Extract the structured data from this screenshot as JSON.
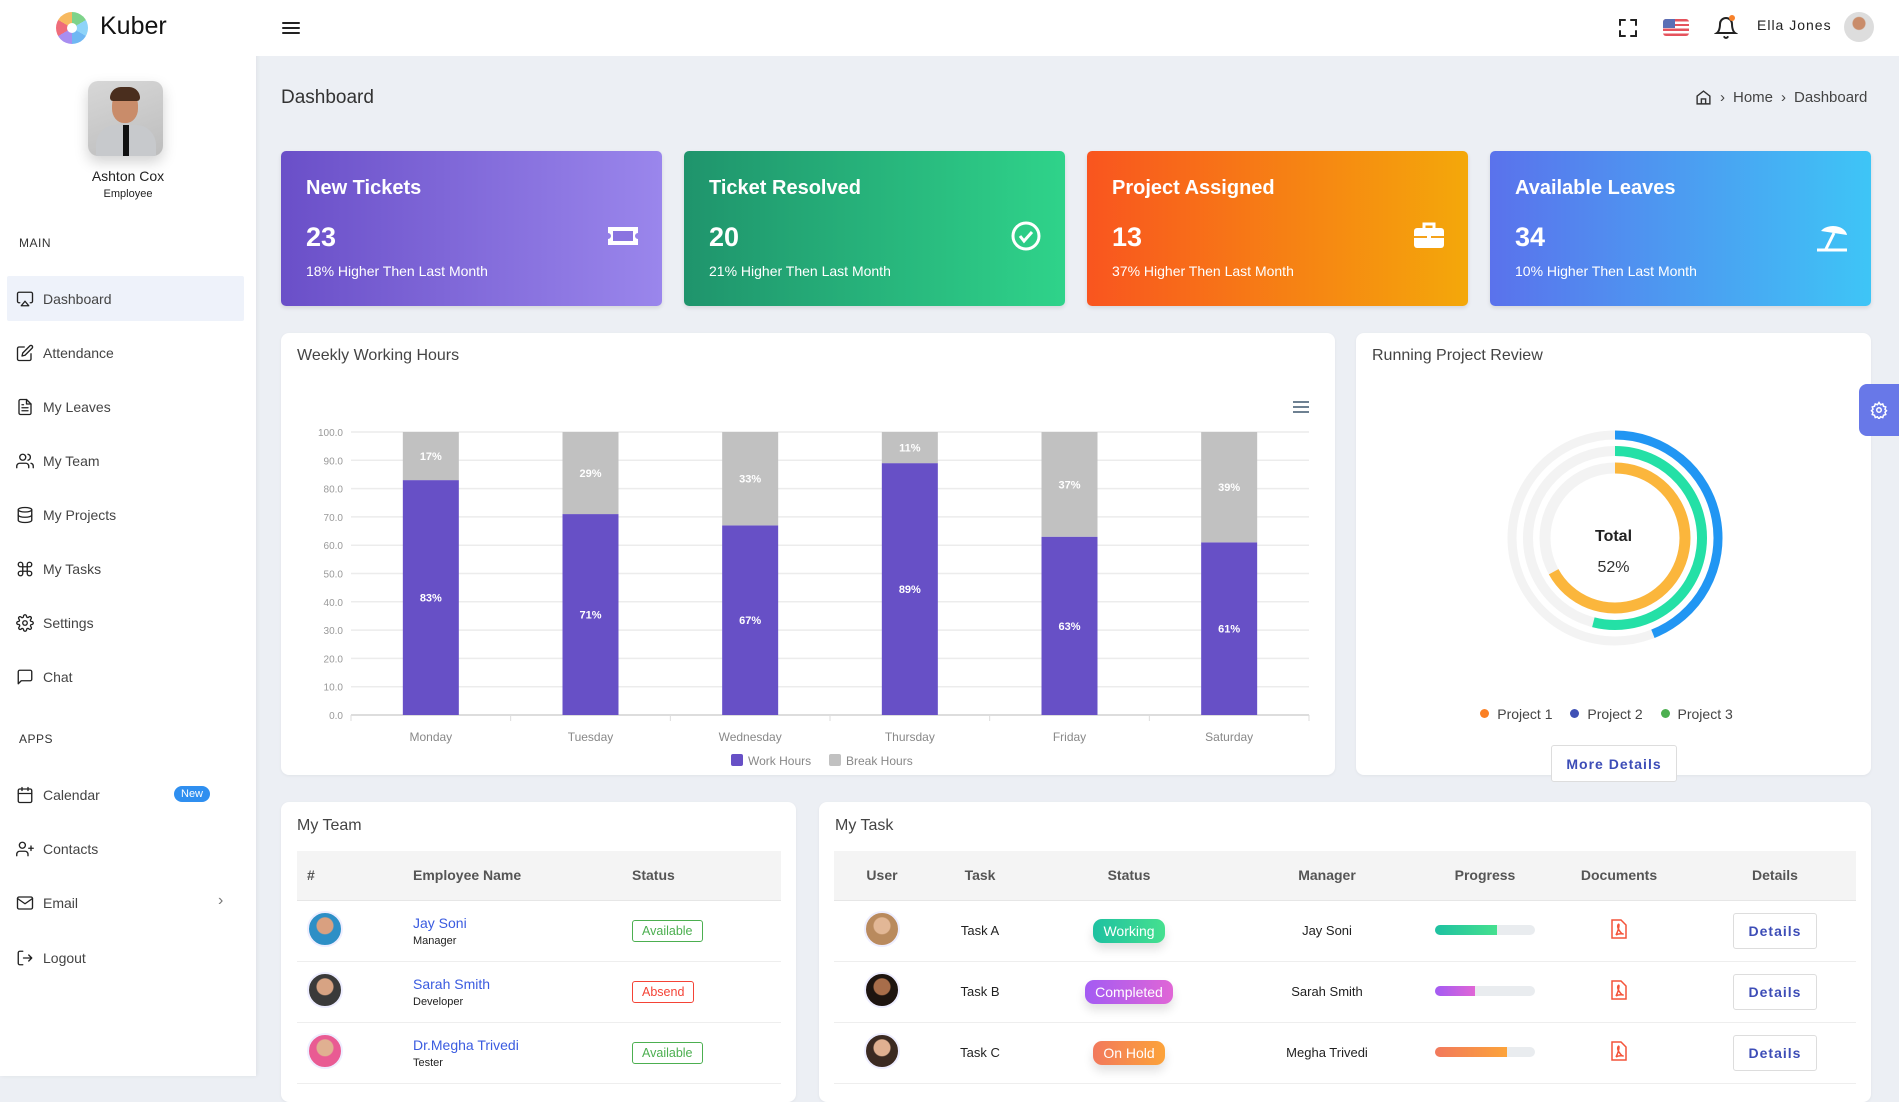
{
  "app": {
    "name": "Kuber"
  },
  "profile": {
    "name": "Ashton Cox",
    "role": "Employee"
  },
  "sidebar": {
    "main_label": "MAIN",
    "apps_label": "APPS",
    "main_items": [
      {
        "label": "Dashboard",
        "icon": "monitor-icon",
        "active": true
      },
      {
        "label": "Attendance",
        "icon": "edit-icon"
      },
      {
        "label": "My Leaves",
        "icon": "file-text-icon"
      },
      {
        "label": "My Team",
        "icon": "users-icon"
      },
      {
        "label": "My Projects",
        "icon": "database-icon"
      },
      {
        "label": "My Tasks",
        "icon": "command-icon"
      },
      {
        "label": "Settings",
        "icon": "settings-icon"
      },
      {
        "label": "Chat",
        "icon": "message-square-icon"
      }
    ],
    "app_items": [
      {
        "label": "Calendar",
        "icon": "calendar-icon",
        "badge": "New"
      },
      {
        "label": "Contacts",
        "icon": "user-plus-icon"
      },
      {
        "label": "Email",
        "icon": "mail-icon"
      },
      {
        "label": "Logout",
        "icon": "log-out-icon"
      }
    ]
  },
  "header": {
    "user_name": "Ella Jones"
  },
  "page": {
    "title": "Dashboard",
    "breadcrumb": [
      "Home",
      "Dashboard"
    ]
  },
  "stats": [
    {
      "title": "New Tickets",
      "value": "23",
      "subtitle": "18% Higher Then Last Month",
      "icon": "ticket-icon"
    },
    {
      "title": "Ticket Resolved",
      "value": "20",
      "subtitle": "21% Higher Then Last Month",
      "icon": "check-circle-icon"
    },
    {
      "title": "Project Assigned",
      "value": "13",
      "subtitle": "37% Higher Then Last Month",
      "icon": "briefcase-icon"
    },
    {
      "title": "Available Leaves",
      "value": "34",
      "subtitle": "10% Higher Then Last Month",
      "icon": "umbrella-beach-icon"
    }
  ],
  "weekly": {
    "title": "Weekly Working Hours"
  },
  "chart_data": [
    {
      "type": "bar",
      "stacked": true,
      "categories": [
        "Monday",
        "Tuesday",
        "Wednesday",
        "Thursday",
        "Friday",
        "Saturday"
      ],
      "series": [
        {
          "name": "Work Hours",
          "values": [
            83,
            71,
            67,
            89,
            63,
            61
          ],
          "color": "#6750c6"
        },
        {
          "name": "Break Hours",
          "values": [
            17,
            29,
            33,
            11,
            37,
            39
          ],
          "color": "#c1c1c1"
        }
      ],
      "yticks": [
        "0.0",
        "10.0",
        "20.0",
        "30.0",
        "40.0",
        "50.0",
        "60.0",
        "70.0",
        "80.0",
        "90.0",
        "100.0"
      ],
      "ylim": [
        0,
        100
      ],
      "grid": true,
      "legend": "bottom"
    },
    {
      "type": "radialBar",
      "title": "Running Project Review",
      "center_label": "Total",
      "center_value": "52%",
      "rings": [
        {
          "value": 44,
          "color": "#2196f3"
        },
        {
          "value": 54,
          "color": "#24e0a6"
        },
        {
          "value": 67,
          "color": "#fbb63c"
        }
      ],
      "legend": [
        {
          "name": "Project 1",
          "color": "#fb8024"
        },
        {
          "name": "Project 2",
          "color": "#3f51b5"
        },
        {
          "name": "Project 3",
          "color": "#4caf50"
        }
      ]
    }
  ],
  "project_review": {
    "title": "Running Project Review",
    "button": "More Details"
  },
  "team": {
    "title": "My Team",
    "columns": [
      "#",
      "Employee Name",
      "Status"
    ],
    "rows": [
      {
        "name": "Jay Soni",
        "role": "Manager",
        "status": "Available"
      },
      {
        "name": "Sarah Smith",
        "role": "Developer",
        "status": "Absend"
      },
      {
        "name": "Dr.Megha Trivedi",
        "role": "Tester",
        "status": "Available"
      }
    ]
  },
  "tasks": {
    "title": "My Task",
    "columns": [
      "User",
      "Task",
      "Status",
      "Manager",
      "Progress",
      "Documents",
      "Details"
    ],
    "rows": [
      {
        "task": "Task A",
        "status": "Working",
        "manager": "Jay Soni",
        "progress": 62,
        "details": "Details"
      },
      {
        "task": "Task B",
        "status": "Completed",
        "manager": "Sarah Smith",
        "progress": 40,
        "details": "Details"
      },
      {
        "task": "Task C",
        "status": "On Hold",
        "manager": "Megha Trivedi",
        "progress": 72,
        "details": "Details"
      }
    ]
  }
}
